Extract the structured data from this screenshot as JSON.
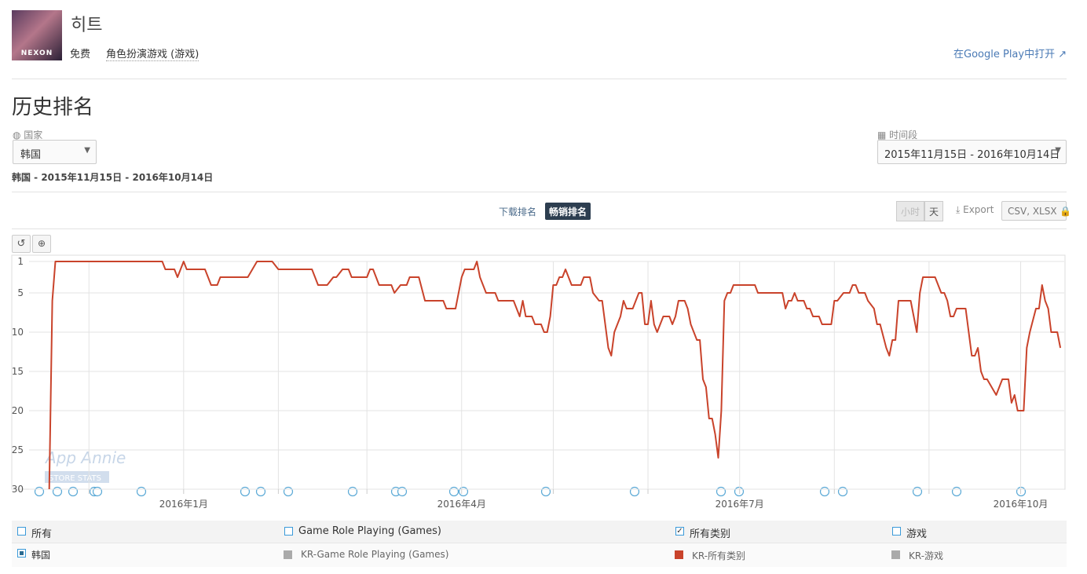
{
  "header": {
    "app_name": "히트",
    "icon_label": "NEXON",
    "price": "免费",
    "genre": "角色扮演游戏 (游戏)",
    "store_link": "在Google Play中打开"
  },
  "section": {
    "title": "历史排名",
    "country_label": "国家",
    "country_value": "韩国",
    "period_label": "时间段",
    "period_value": "2015年11月15日 - 2016年10月14日",
    "summary": "韩国 - 2015年11月15日 - 2016年10月14日"
  },
  "toolbar": {
    "tabs": [
      {
        "label": "下载排名",
        "active": false
      },
      {
        "label": "畅销排名",
        "active": true
      }
    ],
    "granularity": [
      {
        "label": "小时",
        "active": false
      },
      {
        "label": "天",
        "active": true
      }
    ],
    "export": "Export",
    "formats": "CSV, XLSX"
  },
  "watermark": {
    "brand": "App Annie",
    "tag": "STORE STATS"
  },
  "filters": {
    "groups": [
      {
        "label": "所有",
        "checked": false
      },
      {
        "label": "Game Role Playing (Games)",
        "checked": false
      },
      {
        "label": "所有类别",
        "checked": true
      },
      {
        "label": "游戏",
        "checked": false
      }
    ],
    "country": "韩国",
    "hidden_series": [
      {
        "name": "KR-Game Role Playing (Games)",
        "color": "#aaaaaa"
      },
      {
        "name": "KR-游戏",
        "color": "#aaaaaa"
      }
    ]
  },
  "chart_data": {
    "type": "line",
    "ylim": [
      30,
      1
    ],
    "yticks": [
      1,
      5,
      10,
      15,
      20,
      25,
      30
    ],
    "grid": true,
    "xlim": [
      "2015-11-06",
      "2016-10-15"
    ],
    "xticks": [
      {
        "value": "2015-12-01",
        "label": null
      },
      {
        "value": "2016-01-01",
        "label": "2016年1月"
      },
      {
        "value": "2016-02-01",
        "label": null
      },
      {
        "value": "2016-03-01",
        "label": null
      },
      {
        "value": "2016-04-01",
        "label": "2016年4月"
      },
      {
        "value": "2016-05-01",
        "label": null
      },
      {
        "value": "2016-06-01",
        "label": null
      },
      {
        "value": "2016-07-01",
        "label": "2016年7月"
      },
      {
        "value": "2016-08-01",
        "label": null
      },
      {
        "value": "2016-09-01",
        "label": null
      },
      {
        "value": "2016-10-01",
        "label": "2016年10月"
      }
    ],
    "x": [
      "2015-11-18",
      "2015-11-19",
      "2015-11-20",
      "2015-12-25",
      "2015-12-26",
      "2015-12-29",
      "2015-12-30",
      "2016-01-01",
      "2016-01-02",
      "2016-01-08",
      "2016-01-10",
      "2016-01-12",
      "2016-01-13",
      "2016-01-22",
      "2016-01-25",
      "2016-01-30",
      "2016-02-01",
      "2016-02-12",
      "2016-02-14",
      "2016-02-17",
      "2016-02-19",
      "2016-02-20",
      "2016-02-22",
      "2016-02-24",
      "2016-02-25",
      "2016-03-01",
      "2016-03-02",
      "2016-03-03",
      "2016-03-05",
      "2016-03-09",
      "2016-03-10",
      "2016-03-12",
      "2016-03-14",
      "2016-03-15",
      "2016-03-18",
      "2016-03-20",
      "2016-03-26",
      "2016-03-27",
      "2016-03-30",
      "2016-04-01",
      "2016-04-02",
      "2016-04-05",
      "2016-04-06",
      "2016-04-07",
      "2016-04-09",
      "2016-04-12",
      "2016-04-13",
      "2016-04-18",
      "2016-04-20",
      "2016-04-21",
      "2016-04-22",
      "2016-04-24",
      "2016-04-25",
      "2016-04-27",
      "2016-04-28",
      "2016-04-29",
      "2016-04-30",
      "2016-05-01",
      "2016-05-02",
      "2016-05-03",
      "2016-05-04",
      "2016-05-05",
      "2016-05-07",
      "2016-05-10",
      "2016-05-11",
      "2016-05-13",
      "2016-05-14",
      "2016-05-16",
      "2016-05-17",
      "2016-05-19",
      "2016-05-20",
      "2016-05-21",
      "2016-05-23",
      "2016-05-24",
      "2016-05-25",
      "2016-05-27",
      "2016-05-29",
      "2016-05-30",
      "2016-05-31",
      "2016-06-01",
      "2016-06-02",
      "2016-06-03",
      "2016-06-04",
      "2016-06-06",
      "2016-06-08",
      "2016-06-09",
      "2016-06-10",
      "2016-06-11",
      "2016-06-13",
      "2016-06-14",
      "2016-06-15",
      "2016-06-17",
      "2016-06-18",
      "2016-06-19",
      "2016-06-20",
      "2016-06-21",
      "2016-06-22",
      "2016-06-23",
      "2016-06-24",
      "2016-06-25",
      "2016-06-26",
      "2016-06-27",
      "2016-06-28",
      "2016-06-29",
      "2016-07-06",
      "2016-07-07",
      "2016-07-15",
      "2016-07-16",
      "2016-07-17",
      "2016-07-18",
      "2016-07-19",
      "2016-07-20",
      "2016-07-22",
      "2016-07-23",
      "2016-07-24",
      "2016-07-25",
      "2016-07-27",
      "2016-07-28",
      "2016-07-31",
      "2016-08-01",
      "2016-08-02",
      "2016-08-04",
      "2016-08-06",
      "2016-08-07",
      "2016-08-08",
      "2016-08-09",
      "2016-08-11",
      "2016-08-12",
      "2016-08-14",
      "2016-08-15",
      "2016-08-16",
      "2016-08-18",
      "2016-08-19",
      "2016-08-20",
      "2016-08-21",
      "2016-08-22",
      "2016-08-26",
      "2016-08-27",
      "2016-08-28",
      "2016-08-29",
      "2016-08-30",
      "2016-09-03",
      "2016-09-05",
      "2016-09-06",
      "2016-09-07",
      "2016-09-08",
      "2016-09-09",
      "2016-09-10",
      "2016-09-13",
      "2016-09-14",
      "2016-09-15",
      "2016-09-16",
      "2016-09-17",
      "2016-09-18",
      "2016-09-19",
      "2016-09-20",
      "2016-09-23",
      "2016-09-24",
      "2016-09-25",
      "2016-09-27",
      "2016-09-28",
      "2016-09-29",
      "2016-09-30",
      "2016-10-02",
      "2016-10-03",
      "2016-10-04",
      "2016-10-06",
      "2016-10-07",
      "2016-10-08",
      "2016-10-09",
      "2016-10-10",
      "2016-10-11",
      "2016-10-13",
      "2016-10-14"
    ],
    "series": [
      {
        "name": "KR-所有类别",
        "color": "#c9432b",
        "values": [
          30,
          6,
          1,
          1,
          2,
          2,
          3,
          1,
          2,
          2,
          4,
          4,
          3,
          3,
          1,
          1,
          2,
          2,
          4,
          4,
          3,
          3,
          2,
          2,
          3,
          3,
          2,
          2,
          4,
          4,
          5,
          4,
          4,
          3,
          3,
          6,
          6,
          7,
          7,
          3,
          2,
          2,
          1,
          3,
          5,
          5,
          6,
          6,
          8,
          6,
          8,
          8,
          9,
          9,
          10,
          10,
          8,
          4,
          4,
          3,
          3,
          2,
          4,
          4,
          3,
          3,
          5,
          6,
          6,
          12,
          13,
          10,
          8,
          6,
          7,
          7,
          5,
          5,
          9,
          9,
          6,
          9,
          10,
          8,
          8,
          9,
          8,
          6,
          6,
          7,
          9,
          11,
          11,
          16,
          17,
          21,
          21,
          23,
          26,
          20,
          6,
          5,
          5,
          4,
          4,
          5,
          5,
          7,
          6,
          6,
          5,
          6,
          6,
          7,
          7,
          8,
          8,
          9,
          9,
          6,
          6,
          5,
          5,
          4,
          4,
          5,
          5,
          6,
          7,
          9,
          9,
          12,
          13,
          11,
          11,
          6,
          6,
          8,
          10,
          5,
          3,
          3,
          5,
          5,
          6,
          8,
          8,
          7,
          7,
          10,
          13,
          13,
          12,
          15,
          16,
          16,
          18,
          17,
          16,
          16,
          19,
          18,
          20,
          20,
          12,
          10,
          7,
          7,
          4,
          6,
          7,
          10,
          10,
          12
        ]
      }
    ]
  }
}
